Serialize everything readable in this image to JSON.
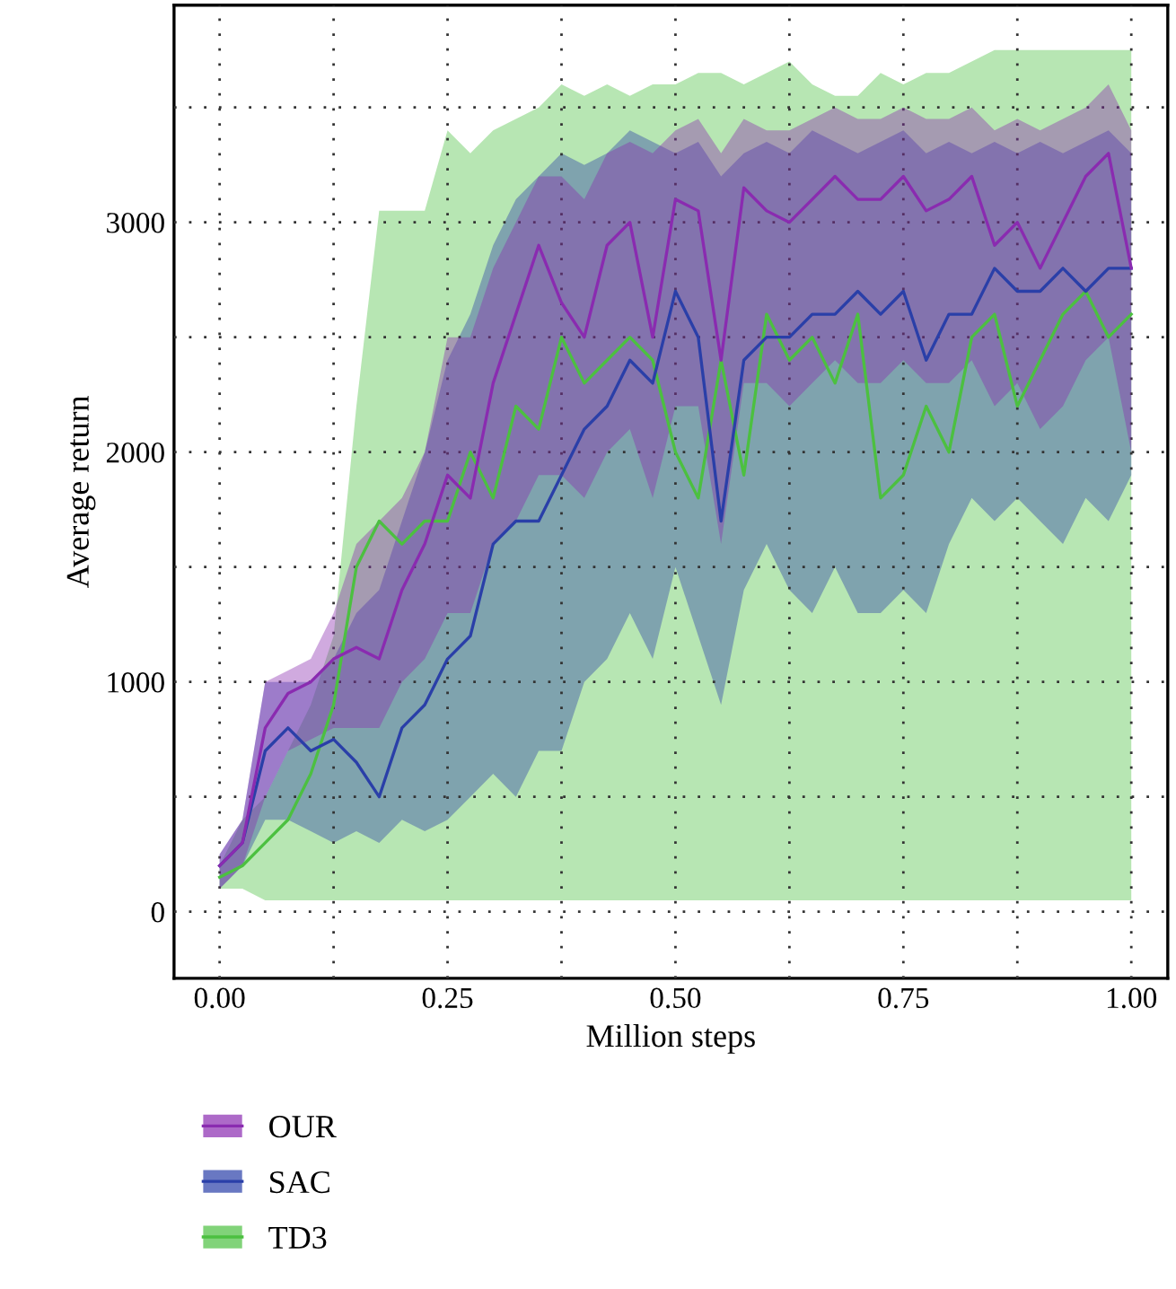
{
  "chart_data": {
    "type": "line",
    "xlabel": "Million steps",
    "ylabel": "Average return",
    "x": [
      0,
      0.025,
      0.05,
      0.075,
      0.1,
      0.125,
      0.15,
      0.175,
      0.2,
      0.225,
      0.25,
      0.275,
      0.3,
      0.325,
      0.35,
      0.375,
      0.4,
      0.425,
      0.45,
      0.475,
      0.5,
      0.525,
      0.55,
      0.575,
      0.6,
      0.625,
      0.65,
      0.675,
      0.7,
      0.725,
      0.75,
      0.775,
      0.8,
      0.825,
      0.85,
      0.875,
      0.9,
      0.925,
      0.95,
      0.975,
      1.0
    ],
    "series": [
      {
        "name": "OUR",
        "color": "#8a2bb0",
        "values": [
          200,
          300,
          800,
          950,
          1000,
          1100,
          1150,
          1100,
          1400,
          1600,
          1900,
          1800,
          2300,
          2600,
          2900,
          2650,
          2500,
          2900,
          3000,
          2500,
          3100,
          3050,
          2400,
          3150,
          3050,
          3000,
          3100,
          3200,
          3100,
          3100,
          3200,
          3050,
          3100,
          3200,
          2900,
          3000,
          2800,
          3000,
          3200,
          3300,
          2800
        ],
        "lower": [
          100,
          200,
          500,
          700,
          750,
          800,
          800,
          800,
          1000,
          1100,
          1300,
          1300,
          1600,
          1700,
          1900,
          1900,
          1800,
          2000,
          2100,
          1800,
          2200,
          2200,
          1600,
          2300,
          2300,
          2200,
          2300,
          2400,
          2300,
          2300,
          2400,
          2300,
          2300,
          2400,
          2200,
          2300,
          2100,
          2200,
          2400,
          2500,
          2000
        ],
        "upper": [
          250,
          400,
          1000,
          1050,
          1100,
          1300,
          1600,
          1700,
          1800,
          2000,
          2500,
          2500,
          2800,
          3000,
          3200,
          3200,
          3100,
          3300,
          3350,
          3300,
          3400,
          3450,
          3300,
          3450,
          3400,
          3400,
          3450,
          3500,
          3450,
          3450,
          3500,
          3450,
          3450,
          3500,
          3400,
          3450,
          3400,
          3450,
          3500,
          3600,
          3400
        ]
      },
      {
        "name": "SAC",
        "color": "#2a3fa8",
        "values": [
          200,
          300,
          700,
          800,
          700,
          750,
          650,
          500,
          800,
          900,
          1100,
          1200,
          1600,
          1700,
          1700,
          1900,
          2100,
          2200,
          2400,
          2300,
          2700,
          2500,
          1700,
          2400,
          2500,
          2500,
          2600,
          2600,
          2700,
          2600,
          2700,
          2400,
          2600,
          2600,
          2800,
          2700,
          2700,
          2800,
          2700,
          2800,
          2800
        ],
        "lower": [
          100,
          200,
          400,
          400,
          350,
          300,
          350,
          300,
          400,
          350,
          400,
          500,
          600,
          500,
          700,
          700,
          1000,
          1100,
          1300,
          1100,
          1500,
          1200,
          900,
          1400,
          1600,
          1400,
          1300,
          1500,
          1300,
          1300,
          1400,
          1300,
          1600,
          1800,
          1700,
          1800,
          1700,
          1600,
          1800,
          1700,
          1900
        ],
        "upper": [
          250,
          400,
          1000,
          1000,
          1000,
          1100,
          1300,
          1400,
          1700,
          2000,
          2400,
          2600,
          2900,
          3100,
          3200,
          3300,
          3250,
          3300,
          3400,
          3350,
          3300,
          3350,
          3200,
          3300,
          3350,
          3300,
          3400,
          3350,
          3300,
          3350,
          3400,
          3300,
          3350,
          3300,
          3350,
          3300,
          3350,
          3300,
          3350,
          3400,
          3300
        ]
      },
      {
        "name": "TD3",
        "color": "#4cc040",
        "values": [
          150,
          200,
          300,
          400,
          600,
          900,
          1500,
          1700,
          1600,
          1700,
          1700,
          2000,
          1800,
          2200,
          2100,
          2500,
          2300,
          2400,
          2500,
          2400,
          2000,
          1800,
          2400,
          1900,
          2600,
          2400,
          2500,
          2300,
          2600,
          1800,
          1900,
          2200,
          2000,
          2500,
          2600,
          2200,
          2400,
          2600,
          2700,
          2500,
          2600
        ],
        "lower": [
          100,
          100,
          50,
          50,
          50,
          50,
          50,
          50,
          50,
          50,
          50,
          50,
          50,
          50,
          50,
          50,
          50,
          50,
          50,
          50,
          50,
          50,
          50,
          50,
          50,
          50,
          50,
          50,
          50,
          50,
          50,
          50,
          50,
          50,
          50,
          50,
          50,
          50,
          50,
          50,
          50
        ],
        "upper": [
          200,
          400,
          500,
          700,
          900,
          1200,
          2200,
          3050,
          3050,
          3050,
          3400,
          3300,
          3400,
          3450,
          3500,
          3600,
          3550,
          3600,
          3550,
          3600,
          3600,
          3650,
          3650,
          3600,
          3650,
          3700,
          3600,
          3550,
          3550,
          3650,
          3600,
          3650,
          3650,
          3700,
          3750,
          3750,
          3750,
          3750,
          3750,
          3750,
          3750
        ]
      }
    ],
    "xlim": [
      -0.05,
      1.04
    ],
    "ylim": [
      -290,
      3945
    ],
    "xticks": [
      {
        "value": 0,
        "label": "0.00"
      },
      {
        "value": 0.125,
        "label": null
      },
      {
        "value": 0.25,
        "label": "0.25"
      },
      {
        "value": 0.375,
        "label": null
      },
      {
        "value": 0.5,
        "label": "0.50"
      },
      {
        "value": 0.625,
        "label": null
      },
      {
        "value": 0.75,
        "label": "0.75"
      },
      {
        "value": 0.875,
        "label": null
      },
      {
        "value": 1.0,
        "label": "1.00"
      }
    ],
    "yticks": [
      0,
      {
        "value": 500,
        "label": null
      },
      1000,
      {
        "value": 1500,
        "label": null
      },
      2000,
      {
        "value": 2500,
        "label": null
      },
      3000,
      {
        "value": 3500,
        "label": null
      }
    ],
    "grid": true,
    "legend": "bottom",
    "line_style": "solid",
    "marker": "none"
  }
}
